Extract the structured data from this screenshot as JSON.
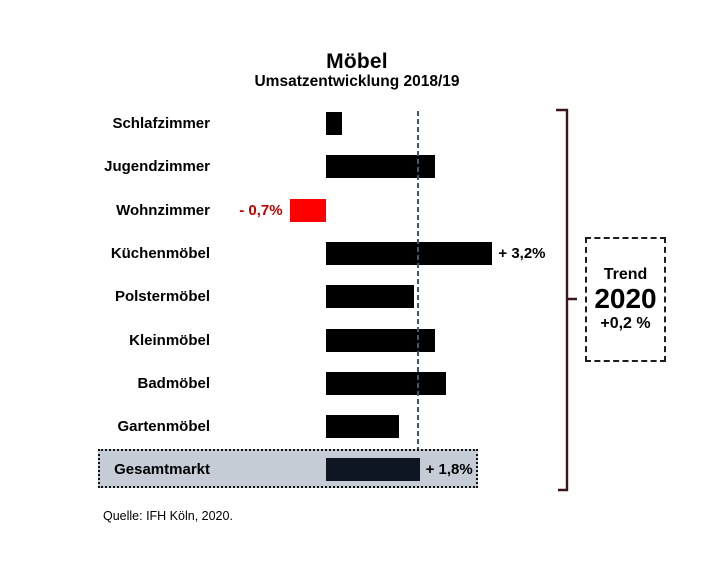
{
  "chart_data": {
    "type": "bar",
    "orientation": "horizontal",
    "title": "Möbel",
    "subtitle": "Umsatzentwicklung 2018/19",
    "unit": "%",
    "xlim": [
      -1,
      4
    ],
    "axis_visible": false,
    "grid": false,
    "legend": false,
    "reference_line": {
      "value": 1.8,
      "style": "dashed"
    },
    "rows": [
      {
        "label": "Schlafzimmer",
        "value": 0.3,
        "value_label": null,
        "highlighted": false
      },
      {
        "label": "Jugendzimmer",
        "value": 2.1,
        "value_label": null,
        "highlighted": false
      },
      {
        "label": "Wohnzimmer",
        "value": -0.7,
        "value_label": "- 0,7%",
        "highlighted": false
      },
      {
        "label": "Küchenmöbel",
        "value": 3.2,
        "value_label": "+ 3,2%",
        "highlighted": false
      },
      {
        "label": "Polstermöbel",
        "value": 1.7,
        "value_label": null,
        "highlighted": false
      },
      {
        "label": "Kleinmöbel",
        "value": 2.1,
        "value_label": null,
        "highlighted": false
      },
      {
        "label": "Badmöbel",
        "value": 2.3,
        "value_label": null,
        "highlighted": false
      },
      {
        "label": "Gartenmöbel",
        "value": 1.4,
        "value_label": null,
        "highlighted": false
      },
      {
        "label": "Gesamtmarkt",
        "value": 1.8,
        "value_label": "+ 1,8%",
        "highlighted": true
      }
    ]
  },
  "trend_box": {
    "line1": "Trend",
    "line2": "2020",
    "line3": "+0,2 %"
  },
  "source": "Quelle: IFH Köln, 2020.",
  "colors": {
    "bar": "#000000",
    "bar_negative": "#FF0000",
    "bar_total": "#0E1523",
    "negative_label": "#C00000",
    "reference_line": "#3E5878",
    "highlight_bg": "#C6CCD6",
    "bracket": "#3B161A"
  }
}
